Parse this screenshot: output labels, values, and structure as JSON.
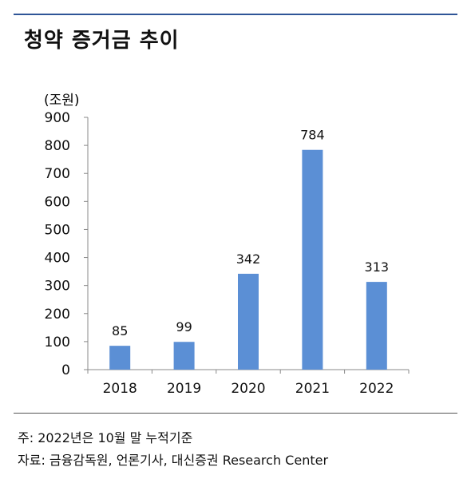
{
  "header": {
    "title": "청약 증거금 추이"
  },
  "chart_data": {
    "type": "bar",
    "unit_label": "(조원)",
    "categories": [
      "2018",
      "2019",
      "2020",
      "2021",
      "2022"
    ],
    "values": [
      85,
      99,
      342,
      784,
      313
    ],
    "data_labels": [
      "85",
      "99",
      "342",
      "784",
      "313"
    ],
    "ylim": [
      0,
      900
    ],
    "yticks": [
      "0",
      "100",
      "200",
      "300",
      "400",
      "500",
      "600",
      "700",
      "800",
      "900"
    ],
    "bar_color": "#5b8fd5",
    "grid": false
  },
  "footer": {
    "note": "주: 2022년은 10월 말 누적기준",
    "source": "자료: 금융감독원, 언론기사, 대신증권 Research Center"
  }
}
